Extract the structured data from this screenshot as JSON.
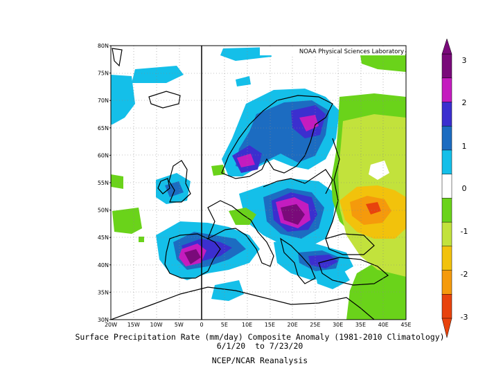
{
  "credit": "NOAA Physical Sciences Laboratory",
  "title_line1": "Surface Precipitation Rate (mm/day) Composite Anomaly (1981-2010 Climatology)",
  "title_line2": "6/1/20  to 7/23/20",
  "title_line3": "NCEP/NCAR Reanalysis",
  "lon_ticks": [
    "20W",
    "15W",
    "10W",
    "5W",
    "0",
    "5E",
    "10E",
    "15E",
    "20E",
    "25E",
    "30E",
    "35E",
    "40E",
    "45E"
  ],
  "lat_ticks": [
    "80N",
    "75N",
    "70N",
    "65N",
    "60N",
    "55N",
    "50N",
    "45N",
    "40N",
    "35N",
    "30N"
  ],
  "colorbar": {
    "ticks": [
      "3",
      "2",
      "1",
      "0",
      "-1",
      "-2",
      "-3"
    ],
    "colors": [
      "#7a0a7a",
      "#c41cbf",
      "#3b2fcf",
      "#1c6cc1",
      "#14bfe9",
      "#ffffff",
      "#6ad31a",
      "#c2e23c",
      "#f2c20c",
      "#f59a0c",
      "#e8430d"
    ]
  },
  "chart_data": {
    "type": "heatmap",
    "variable": "Surface Precipitation Rate (mm/day) Composite Anomaly",
    "units": "mm/day",
    "period": "6/1/20 to 7/23/20",
    "x_range": [
      -20,
      45
    ],
    "y_range": [
      30,
      80
    ],
    "color_scale": [
      -3,
      3
    ],
    "regions": [
      {
        "lon": -3,
        "lat": 41,
        "anomaly": 3
      },
      {
        "lon": 21,
        "lat": 49,
        "anomaly": 3
      },
      {
        "lon": 22,
        "lat": 66,
        "anomaly": 2.5
      },
      {
        "lon": 9,
        "lat": 59,
        "anomaly": 2.5
      },
      {
        "lon": 22,
        "lat": 41,
        "anomaly": 2
      },
      {
        "lon": 38,
        "lat": 50,
        "anomaly": -2.5
      },
      {
        "lon": 40,
        "lat": 54,
        "anomaly": -1
      },
      {
        "lon": 40,
        "lat": 40,
        "anomaly": -1
      },
      {
        "lon": -18,
        "lat": 54,
        "anomaly": -1
      },
      {
        "lon": -15,
        "lat": 70,
        "anomaly": 1
      }
    ]
  }
}
